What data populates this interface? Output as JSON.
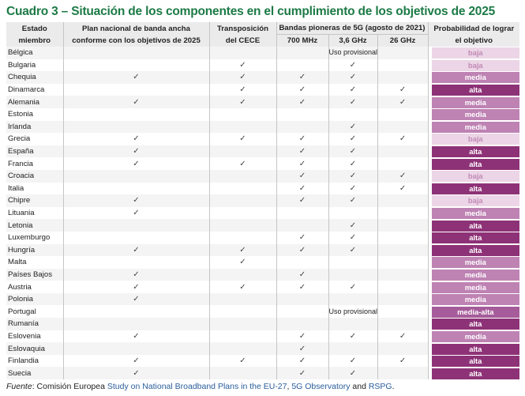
{
  "title": "Cuadro 3 – Situación de los componentes en el cumplimiento de los objetivos de 2025",
  "headers": {
    "state": "Estado miembro",
    "plan": "Plan nacional de banda ancha conforme con los objetivos de 2025",
    "cece": "Transposición del CECE",
    "bands": "Bandas pioneras de 5G (agosto de 2021)",
    "b700": "700 MHz",
    "b36": "3,6 GHz",
    "b26": "26 GHz",
    "prob": "Probabilidad de lograr el objetivo"
  },
  "check_symbol": "✓",
  "rows": [
    {
      "country": "Bélgica",
      "plan": "",
      "cece": "",
      "b700": "",
      "b36": "Uso provisional",
      "b26": "",
      "prob": "baja"
    },
    {
      "country": "Bulgaria",
      "plan": "",
      "cece": "✓",
      "b700": "",
      "b36": "✓",
      "b26": "",
      "prob": "baja"
    },
    {
      "country": "Chequia",
      "plan": "✓",
      "cece": "✓",
      "b700": "✓",
      "b36": "✓",
      "b26": "",
      "prob": "media"
    },
    {
      "country": "Dinamarca",
      "plan": "",
      "cece": "✓",
      "b700": "✓",
      "b36": "✓",
      "b26": "✓",
      "prob": "alta"
    },
    {
      "country": "Alemania",
      "plan": "✓",
      "cece": "✓",
      "b700": "✓",
      "b36": "✓",
      "b26": "✓",
      "prob": "media"
    },
    {
      "country": "Estonia",
      "plan": "",
      "cece": "",
      "b700": "",
      "b36": "",
      "b26": "",
      "prob": "media"
    },
    {
      "country": "Irlanda",
      "plan": "",
      "cece": "",
      "b700": "",
      "b36": "✓",
      "b26": "",
      "prob": "media"
    },
    {
      "country": "Grecia",
      "plan": "✓",
      "cece": "✓",
      "b700": "✓",
      "b36": "✓",
      "b26": "✓",
      "prob": "baja"
    },
    {
      "country": "España",
      "plan": "✓",
      "cece": "",
      "b700": "✓",
      "b36": "✓",
      "b26": "",
      "prob": "alta"
    },
    {
      "country": "Francia",
      "plan": "✓",
      "cece": "✓",
      "b700": "✓",
      "b36": "✓",
      "b26": "",
      "prob": "alta"
    },
    {
      "country": "Croacia",
      "plan": "",
      "cece": "",
      "b700": "✓",
      "b36": "✓",
      "b26": "✓",
      "prob": "baja"
    },
    {
      "country": "Italia",
      "plan": "",
      "cece": "",
      "b700": "✓",
      "b36": "✓",
      "b26": "✓",
      "prob": "alta"
    },
    {
      "country": "Chipre",
      "plan": "✓",
      "cece": "",
      "b700": "✓",
      "b36": "✓",
      "b26": "",
      "prob": "baja"
    },
    {
      "country": "Lituania",
      "plan": "✓",
      "cece": "",
      "b700": "",
      "b36": "",
      "b26": "",
      "prob": "media"
    },
    {
      "country": "Letonia",
      "plan": "",
      "cece": "",
      "b700": "",
      "b36": "✓",
      "b26": "",
      "prob": "alta"
    },
    {
      "country": "Luxemburgo",
      "plan": "",
      "cece": "",
      "b700": "✓",
      "b36": "✓",
      "b26": "",
      "prob": "alta"
    },
    {
      "country": "Hungría",
      "plan": "✓",
      "cece": "✓",
      "b700": "✓",
      "b36": "✓",
      "b26": "",
      "prob": "alta"
    },
    {
      "country": "Malta",
      "plan": "",
      "cece": "✓",
      "b700": "",
      "b36": "",
      "b26": "",
      "prob": "media"
    },
    {
      "country": "Países Bajos",
      "plan": "✓",
      "cece": "",
      "b700": "✓",
      "b36": "",
      "b26": "",
      "prob": "media"
    },
    {
      "country": "Austria",
      "plan": "✓",
      "cece": "✓",
      "b700": "✓",
      "b36": "✓",
      "b26": "",
      "prob": "media"
    },
    {
      "country": "Polonia",
      "plan": "✓",
      "cece": "",
      "b700": "",
      "b36": "",
      "b26": "",
      "prob": "media"
    },
    {
      "country": "Portugal",
      "plan": "",
      "cece": "",
      "b700": "",
      "b36": "Uso provisional",
      "b26": "",
      "prob": "media-alta"
    },
    {
      "country": "Rumanía",
      "plan": "",
      "cece": "",
      "b700": "",
      "b36": "",
      "b26": "",
      "prob": "alta"
    },
    {
      "country": "Eslovenia",
      "plan": "✓",
      "cece": "",
      "b700": "✓",
      "b36": "✓",
      "b26": "✓",
      "prob": "media"
    },
    {
      "country": "Eslovaquia",
      "plan": "",
      "cece": "",
      "b700": "✓",
      "b36": "",
      "b26": "",
      "prob": "alta"
    },
    {
      "country": "Finlandia",
      "plan": "✓",
      "cece": "✓",
      "b700": "✓",
      "b36": "✓",
      "b26": "✓",
      "prob": "alta"
    },
    {
      "country": "Suecia",
      "plan": "✓",
      "cece": "",
      "b700": "✓",
      "b36": "✓",
      "b26": "",
      "prob": "alta"
    }
  ],
  "prob_colors": {
    "baja": "#ecd5e6",
    "media": "#be82b3",
    "media-alta": "#a65c9a",
    "alta": "#8e3277"
  },
  "footer": {
    "label": "Fuente",
    "colon": ": ",
    "publisher": "Comisión Europea ",
    "link1": "Study on National Broadband Plans in the EU-27",
    "sep1": ", ",
    "link2": "5G Observatory",
    "sep2": " and ",
    "link3": "RSPG",
    "end": "."
  },
  "title_color": "#1c7a45"
}
